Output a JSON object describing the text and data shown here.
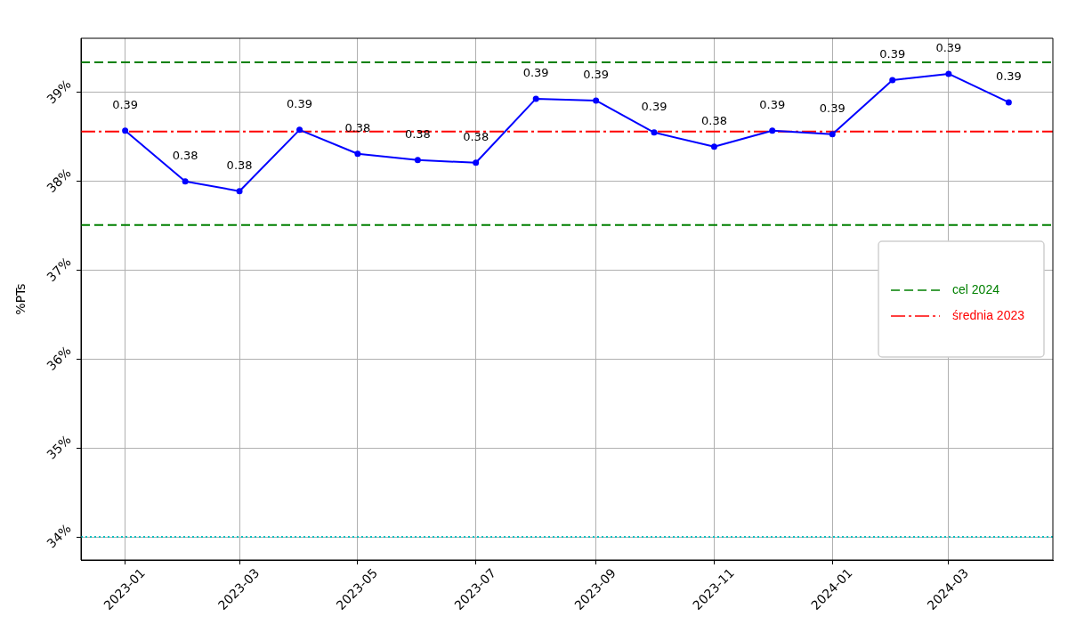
{
  "chart_data": {
    "type": "line",
    "ylabel": "%PTs",
    "x": [
      "2023-01",
      "2023-02",
      "2023-03",
      "2023-04",
      "2023-05",
      "2023-06",
      "2023-07",
      "2023-08",
      "2023-09",
      "2023-10",
      "2023-11",
      "2023-12",
      "2024-01",
      "2024-02",
      "2024-03",
      "2024-04"
    ],
    "xlim": [
      "2022-12-09T04:48",
      "2024-04-23T19:12"
    ],
    "xticks": [
      "2023-01",
      "2023-03",
      "2023-05",
      "2023-07",
      "2023-09",
      "2023-11",
      "2024-01",
      "2024-03"
    ],
    "ylim": [
      0.3374,
      0.3961
    ],
    "yticks": [
      {
        "value": 0.34,
        "label": "34%"
      },
      {
        "value": 0.35,
        "label": "35%"
      },
      {
        "value": 0.36,
        "label": "36%"
      },
      {
        "value": 0.37,
        "label": "37%"
      },
      {
        "value": 0.38,
        "label": "38%"
      },
      {
        "value": 0.39,
        "label": "39%"
      }
    ],
    "series": [
      {
        "color": "#0000ff",
        "values": [
          0.3857,
          0.38,
          0.3789,
          0.3858,
          0.3831,
          0.3824,
          0.3821,
          0.3893,
          0.3891,
          0.3855,
          0.3839,
          0.3857,
          0.3853,
          0.3914,
          0.3921,
          0.3889
        ],
        "value_labels": [
          "0.39",
          "0.38",
          "0.38",
          "0.39",
          "0.38",
          "0.38",
          "0.38",
          "0.39",
          "0.39",
          "0.39",
          "0.38",
          "0.39",
          "0.39",
          "0.39",
          "0.39",
          "0.39"
        ]
      }
    ],
    "ref_lines": [
      {
        "axis": "y",
        "value": 0.3934,
        "label": "cel 2024",
        "color": "#008000",
        "line_style": "dashed"
      },
      {
        "axis": "y",
        "value": 0.3751,
        "color": "#008000",
        "line_style": "dashed"
      },
      {
        "axis": "y",
        "value": 0.3856,
        "label": "średnia 2023",
        "color": "#ff0000",
        "line_style": "dashdot"
      },
      {
        "axis": "y",
        "value": 0.34,
        "color": "#00bfbf",
        "line_style": "dotted"
      }
    ],
    "grid": true,
    "legend": "right",
    "marker": "circle"
  }
}
